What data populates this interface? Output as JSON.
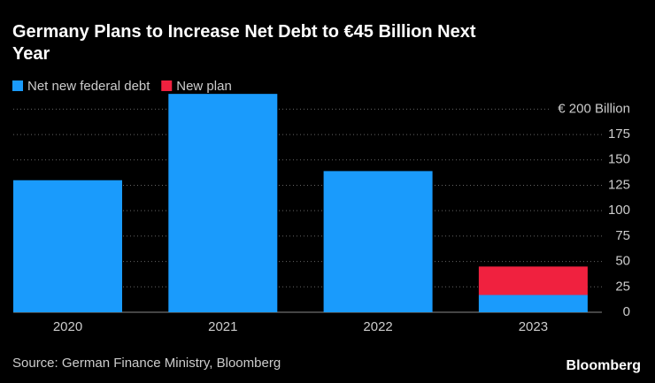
{
  "chart_data": {
    "type": "bar",
    "stacked": true,
    "title": "Germany Plans to Increase Net Debt to €45 Billion Next Year",
    "categories": [
      "2020",
      "2021",
      "2022",
      "2023"
    ],
    "series": [
      {
        "name": "Net new federal debt",
        "color": "#1a9bfc",
        "values": [
          130,
          215,
          139,
          17
        ]
      },
      {
        "name": "New plan",
        "color": "#f0213f",
        "values": [
          null,
          null,
          null,
          28
        ]
      }
    ],
    "ylim": [
      0,
      216
    ],
    "yticks": [
      0,
      25,
      50,
      75,
      100,
      125,
      150,
      175,
      {
        "value": 200,
        "label": "€ 200 Billion"
      }
    ],
    "grid": true,
    "source": "Source: German Finance Ministry, Bloomberg",
    "logo": "Bloomberg"
  }
}
